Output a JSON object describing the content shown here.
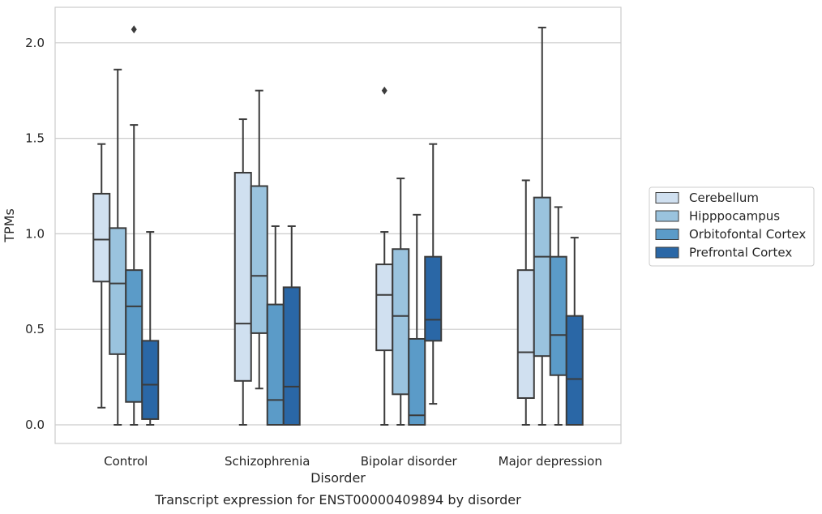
{
  "chart_data": {
    "type": "box",
    "xlabel": "Disorder",
    "ylabel": "TPMs",
    "caption": "Transcript expression for ENST00000409894 by disorder",
    "ylim": [
      -0.1,
      2.19
    ],
    "yticks": [
      "0.0",
      "0.5",
      "1.0",
      "1.5",
      "2.0"
    ],
    "grid": true,
    "legend_placement": "right",
    "categories": [
      "Control",
      "Schizophrenia",
      "Bipolar disorder",
      "Major depression"
    ],
    "series": [
      {
        "name": "Cerebellum",
        "color": "#d0e0f0",
        "boxes": [
          {
            "low": 0.09,
            "q1": 0.75,
            "median": 0.97,
            "q3": 1.21,
            "high": 1.47,
            "outliers": []
          },
          {
            "low": 0.0,
            "q1": 0.23,
            "median": 0.53,
            "q3": 1.32,
            "high": 1.6,
            "outliers": []
          },
          {
            "low": 0.0,
            "q1": 0.39,
            "median": 0.68,
            "q3": 0.84,
            "high": 1.01,
            "outliers": [
              1.75
            ]
          },
          {
            "low": 0.0,
            "q1": 0.14,
            "median": 0.38,
            "q3": 0.81,
            "high": 1.28,
            "outliers": []
          }
        ]
      },
      {
        "name": "Hipppocampus",
        "color": "#9ac3de",
        "boxes": [
          {
            "low": 0.0,
            "q1": 0.37,
            "median": 0.74,
            "q3": 1.03,
            "high": 1.86,
            "outliers": []
          },
          {
            "low": 0.19,
            "q1": 0.48,
            "median": 0.78,
            "q3": 1.25,
            "high": 1.75,
            "outliers": []
          },
          {
            "low": 0.0,
            "q1": 0.16,
            "median": 0.57,
            "q3": 0.92,
            "high": 1.29,
            "outliers": []
          },
          {
            "low": 0.0,
            "q1": 0.36,
            "median": 0.88,
            "q3": 1.19,
            "high": 2.08,
            "outliers": []
          }
        ]
      },
      {
        "name": "Orbitofontal Cortex",
        "color": "#5b9bc8",
        "boxes": [
          {
            "low": 0.0,
            "q1": 0.12,
            "median": 0.62,
            "q3": 0.81,
            "high": 1.57,
            "outliers": [
              2.07
            ]
          },
          {
            "low": 0.0,
            "q1": 0.0,
            "median": 0.13,
            "q3": 0.63,
            "high": 1.04,
            "outliers": []
          },
          {
            "low": 0.0,
            "q1": 0.0,
            "median": 0.05,
            "q3": 0.45,
            "high": 1.1,
            "outliers": []
          },
          {
            "low": 0.0,
            "q1": 0.26,
            "median": 0.47,
            "q3": 0.88,
            "high": 1.14,
            "outliers": []
          }
        ]
      },
      {
        "name": "Prefrontal Cortex",
        "color": "#2a67a6",
        "boxes": [
          {
            "low": 0.0,
            "q1": 0.03,
            "median": 0.21,
            "q3": 0.44,
            "high": 1.01,
            "outliers": []
          },
          {
            "low": 0.0,
            "q1": 0.0,
            "median": 0.2,
            "q3": 0.72,
            "high": 1.04,
            "outliers": []
          },
          {
            "low": 0.11,
            "q1": 0.44,
            "median": 0.55,
            "q3": 0.88,
            "high": 1.47,
            "outliers": []
          },
          {
            "low": 0.0,
            "q1": 0.0,
            "median": 0.24,
            "q3": 0.57,
            "high": 0.98,
            "outliers": []
          }
        ]
      }
    ]
  }
}
